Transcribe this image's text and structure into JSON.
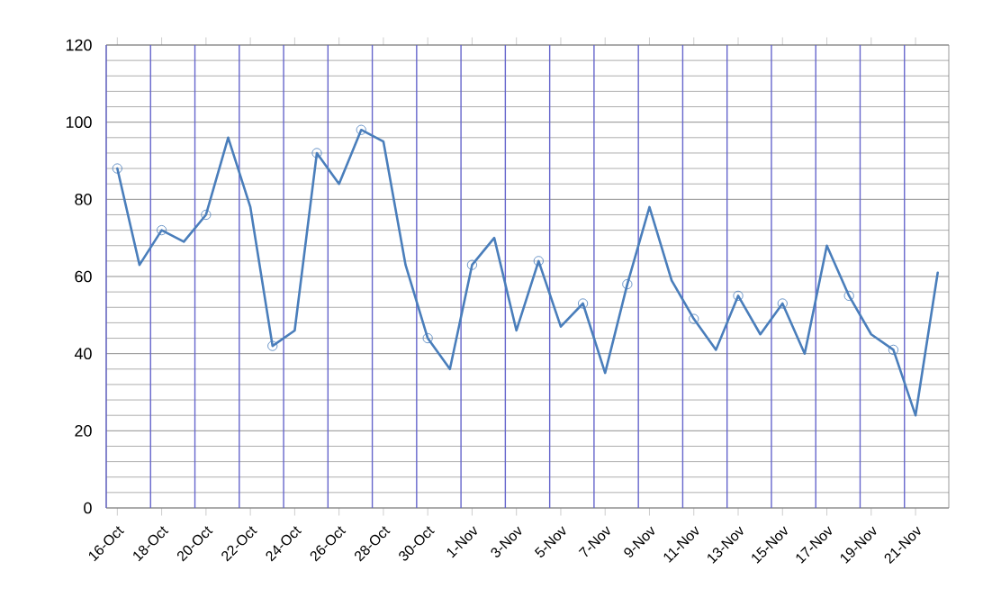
{
  "chart_data": {
    "type": "line",
    "categories": [
      "16-Oct",
      null,
      "18-Oct",
      null,
      "20-Oct",
      null,
      "22-Oct",
      null,
      "24-Oct",
      null,
      "26-Oct",
      null,
      "28-Oct",
      null,
      "30-Oct",
      null,
      "1-Nov",
      null,
      "3-Nov",
      null,
      "5-Nov",
      null,
      "7-Nov",
      null,
      "9-Nov",
      null,
      "11-Nov",
      null,
      "13-Nov",
      null,
      "15-Nov",
      null,
      "17-Nov",
      null,
      "19-Nov",
      null,
      "21-Nov",
      null
    ],
    "series": [
      {
        "color": "#4a7ebb",
        "marker": "none",
        "values": [
          88,
          63,
          72,
          69,
          76,
          96,
          78,
          42,
          46,
          92,
          84,
          98,
          95,
          63,
          44,
          36,
          63,
          70,
          46,
          64,
          47,
          53,
          35,
          58,
          78,
          59,
          49,
          41,
          55,
          45,
          53,
          40,
          68,
          55,
          45,
          41,
          24,
          61
        ]
      },
      {
        "type": "scatter",
        "color": "#4a7ebb",
        "marker": "circle",
        "values": [
          88,
          null,
          72,
          null,
          76,
          null,
          null,
          42,
          null,
          92,
          null,
          98,
          null,
          null,
          44,
          null,
          63,
          null,
          null,
          64,
          null,
          53,
          null,
          58,
          null,
          null,
          49,
          null,
          55,
          null,
          53,
          null,
          null,
          55,
          null,
          41,
          null,
          null
        ]
      }
    ],
    "ylim": [
      0,
      120
    ],
    "yticks": [
      0,
      20,
      40,
      60,
      80,
      100,
      120
    ],
    "grid": true
  }
}
